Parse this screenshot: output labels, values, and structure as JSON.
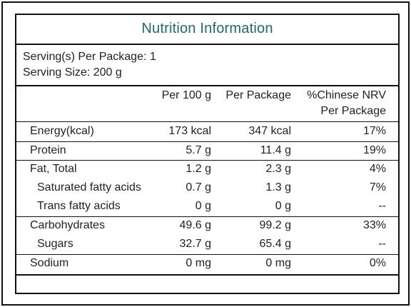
{
  "title": "Nutrition Information",
  "title_color": "#1f6b68",
  "servings_per_package": "Serving(s) Per Package: 1",
  "serving_size": "Serving Size: 200 g",
  "headers": {
    "per100": "Per 100 g",
    "perPackage": "Per Package",
    "nrv_line1": "%Chinese NRV",
    "nrv_line2": "Per Package"
  },
  "rows": [
    {
      "name": "Energy(kcal)",
      "per100": "173 kcal",
      "perPackage": "347 kcal",
      "nrv": "17%"
    },
    {
      "name": "Protein",
      "per100": "5.7 g",
      "perPackage": "11.4 g",
      "nrv": "19%"
    },
    {
      "name": "Fat, Total",
      "per100": "1.2 g",
      "perPackage": "2.3 g",
      "nrv": "4%"
    },
    {
      "name": "Saturated fatty acids",
      "per100": "0.7 g",
      "perPackage": "1.3 g",
      "nrv": "7%"
    },
    {
      "name": "Trans fatty acids",
      "per100": "0 g",
      "perPackage": "0 g",
      "nrv": "--"
    },
    {
      "name": "Carbohydrates",
      "per100": "49.6 g",
      "perPackage": "99.2 g",
      "nrv": "33%"
    },
    {
      "name": "Sugars",
      "per100": "32.7 g",
      "perPackage": "65.4 g",
      "nrv": "--"
    },
    {
      "name": "Sodium",
      "per100": "0 mg",
      "perPackage": "0 mg",
      "nrv": "0%"
    }
  ]
}
